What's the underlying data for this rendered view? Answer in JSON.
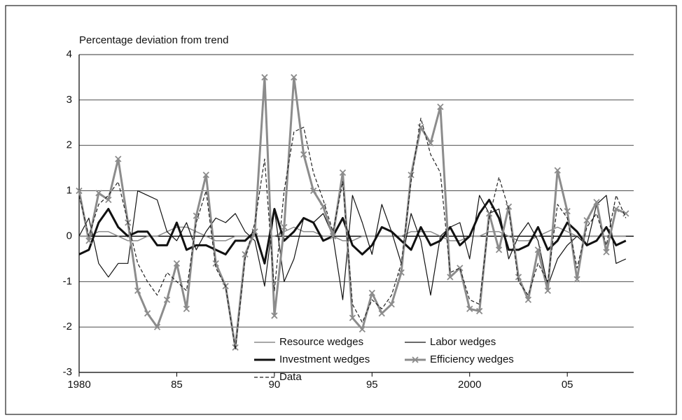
{
  "chart_data": {
    "type": "line",
    "y_axis_title": "Percentage deviation from trend",
    "x": [
      1980,
      1980.5,
      1981,
      1981.5,
      1982,
      1982.5,
      1983,
      1983.5,
      1984,
      1984.5,
      1985,
      1985.5,
      1986,
      1986.5,
      1987,
      1987.5,
      1988,
      1988.5,
      1989,
      1989.5,
      1990,
      1990.5,
      1991,
      1991.5,
      1992,
      1992.5,
      1993,
      1993.5,
      1994,
      1994.5,
      1995,
      1995.5,
      1996,
      1996.5,
      1997,
      1997.5,
      1998,
      1998.5,
      1999,
      1999.5,
      2000,
      2000.5,
      2001,
      2001.5,
      2002,
      2002.5,
      2003,
      2003.5,
      2004,
      2004.5,
      2005,
      2005.5,
      2006,
      2006.5,
      2007,
      2007.5,
      2008
    ],
    "xlim": [
      1980,
      2008.4
    ],
    "xticks": [
      {
        "value": 1980,
        "label": "1980"
      },
      {
        "value": 1985,
        "label": "85"
      },
      {
        "value": 1990,
        "label": "90"
      },
      {
        "value": 1995,
        "label": "95"
      },
      {
        "value": 2000,
        "label": "2000"
      },
      {
        "value": 2005,
        "label": "05"
      }
    ],
    "ylim": [
      -3,
      4
    ],
    "yticks": [
      -3,
      -2,
      -1,
      0,
      1,
      2,
      3,
      4
    ],
    "grid": true,
    "legend_position": "bottom",
    "series": [
      {
        "name": "Resource wedges",
        "color": "#8c8c8c",
        "width": 1.5,
        "dash": "solid",
        "marker": "none",
        "values": [
          0.0,
          0.0,
          0.1,
          0.1,
          0.0,
          -0.1,
          -0.1,
          0.0,
          0.0,
          0.1,
          0.2,
          0.2,
          0.1,
          0.0,
          -0.1,
          -0.1,
          0.0,
          0.0,
          0.0,
          0.0,
          0.0,
          0.1,
          0.2,
          0.1,
          0.1,
          0.0,
          0.0,
          -0.1,
          -0.1,
          0.0,
          0.0,
          0.0,
          0.0,
          0.0,
          0.1,
          0.1,
          0.1,
          0.0,
          -0.1,
          -0.1,
          0.0,
          0.0,
          0.1,
          0.1,
          0.0,
          -0.1,
          -0.1,
          0.0,
          0.1,
          0.2,
          0.1,
          0.0,
          0.0,
          0.0,
          0.0,
          0.0,
          0.0
        ]
      },
      {
        "name": "Labor wedges",
        "color": "#111111",
        "width": 1.2,
        "dash": "solid",
        "marker": "none",
        "values": [
          0.0,
          0.4,
          -0.6,
          -0.9,
          -0.6,
          -0.6,
          1.0,
          0.9,
          0.8,
          0.1,
          -0.1,
          0.3,
          -0.3,
          0.1,
          0.4,
          0.3,
          0.5,
          0.1,
          -0.1,
          -1.1,
          0.6,
          -1.0,
          -0.5,
          0.4,
          0.3,
          0.5,
          0.0,
          -1.4,
          0.9,
          0.3,
          -0.4,
          0.7,
          0.1,
          -0.6,
          0.5,
          -0.1,
          -1.3,
          0.0,
          0.2,
          0.3,
          -0.5,
          0.9,
          0.5,
          0.6,
          -0.5,
          0.0,
          0.3,
          -0.1,
          -1.1,
          -0.5,
          -0.2,
          0.0,
          -0.2,
          0.7,
          0.9,
          -0.6,
          -0.5
        ]
      },
      {
        "name": "Investment wedges",
        "color": "#111111",
        "width": 3,
        "dash": "solid",
        "marker": "none",
        "values": [
          -0.4,
          -0.3,
          0.3,
          0.6,
          0.2,
          0.0,
          0.1,
          0.1,
          -0.2,
          -0.2,
          0.3,
          -0.3,
          -0.2,
          -0.2,
          -0.3,
          -0.4,
          -0.1,
          -0.1,
          0.1,
          -0.6,
          0.6,
          -0.1,
          0.1,
          0.4,
          0.3,
          -0.1,
          0.0,
          0.4,
          -0.2,
          -0.4,
          -0.2,
          0.2,
          0.1,
          -0.1,
          -0.3,
          0.2,
          -0.2,
          -0.1,
          0.2,
          -0.2,
          0.0,
          0.5,
          0.8,
          0.4,
          -0.3,
          -0.3,
          -0.2,
          0.2,
          -0.3,
          -0.1,
          0.3,
          0.1,
          -0.2,
          -0.1,
          0.2,
          -0.2,
          -0.1
        ]
      },
      {
        "name": "Efficiency wedges",
        "color": "#8c8c8c",
        "width": 3,
        "dash": "solid",
        "marker": "x",
        "values": [
          1.0,
          -0.1,
          0.95,
          0.8,
          1.7,
          0.3,
          -1.2,
          -1.7,
          -2.0,
          -1.4,
          -0.6,
          -1.6,
          0.45,
          1.35,
          -0.6,
          -1.1,
          -2.45,
          -0.4,
          0.1,
          3.5,
          -1.75,
          0.2,
          3.5,
          1.8,
          1.0,
          0.65,
          0.0,
          1.4,
          -1.8,
          -2.05,
          -1.25,
          -1.7,
          -1.5,
          -0.8,
          1.35,
          2.4,
          2.05,
          2.85,
          -0.9,
          -0.7,
          -1.6,
          -1.65,
          0.5,
          -0.3,
          0.65,
          -0.9,
          -1.4,
          -0.3,
          -1.2,
          1.45,
          0.55,
          -0.95,
          0.35,
          0.75,
          -0.35,
          0.6,
          0.5
        ]
      },
      {
        "name": "Data",
        "color": "#222222",
        "width": 1.2,
        "dash": "dashed",
        "marker": "none",
        "values": [
          0.9,
          0.0,
          0.7,
          0.9,
          1.2,
          0.3,
          -0.6,
          -1.0,
          -1.3,
          -0.8,
          -1.0,
          -1.2,
          0.3,
          1.0,
          -0.7,
          -1.1,
          -2.5,
          -0.5,
          0.3,
          1.7,
          -1.2,
          1.0,
          2.3,
          2.4,
          1.4,
          0.8,
          0.1,
          1.2,
          -1.5,
          -1.9,
          -1.4,
          -1.6,
          -1.3,
          -0.6,
          1.2,
          2.6,
          1.8,
          1.4,
          -0.8,
          -0.7,
          -1.4,
          -1.5,
          0.4,
          1.3,
          0.6,
          -1.0,
          -1.3,
          -0.6,
          -1.0,
          0.7,
          0.4,
          -0.7,
          0.2,
          0.5,
          -0.2,
          0.9,
          0.4
        ]
      }
    ]
  }
}
